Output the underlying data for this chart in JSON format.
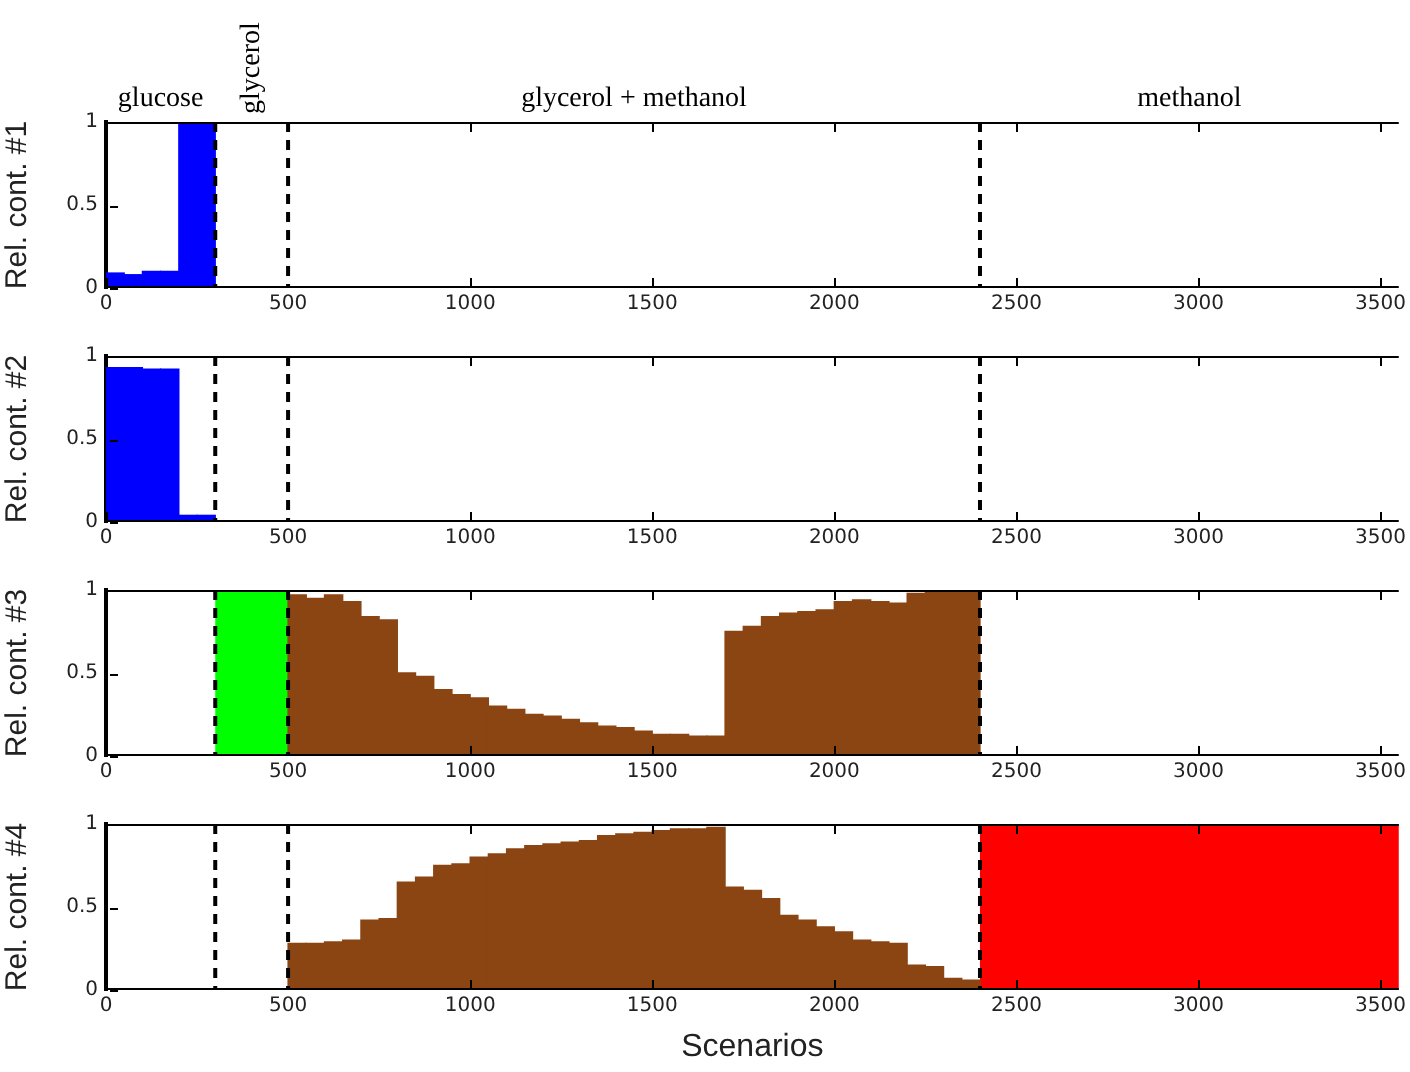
{
  "chart_data": [
    {
      "type": "bar",
      "ylabel": "Rel. cont. #1",
      "xlim": [
        0,
        3550
      ],
      "xticks": [
        0,
        500,
        1000,
        1500,
        2000,
        2500,
        3000,
        3500
      ],
      "ylim": [
        0,
        1
      ],
      "yticks": [
        0,
        0.5,
        1
      ],
      "series": [
        {
          "color": "#0000ff",
          "x": [
            25,
            75,
            125,
            175,
            225,
            275
          ],
          "values": [
            0.09,
            0.08,
            0.1,
            0.1,
            1,
            1
          ]
        }
      ],
      "ref_lines": [
        {
          "axis": "x",
          "value": 300,
          "line_style": "dashed",
          "color": "#000000"
        },
        {
          "axis": "x",
          "value": 500,
          "line_style": "dashed",
          "color": "#000000"
        },
        {
          "axis": "x",
          "value": 2400,
          "line_style": "dashed",
          "color": "#000000"
        }
      ],
      "annotations": [
        "glucose",
        "glycerol",
        "glycerol + methanol",
        "methanol"
      ]
    },
    {
      "type": "bar",
      "ylabel": "Rel. cont. #2",
      "xlim": [
        0,
        3550
      ],
      "xticks": [
        0,
        500,
        1000,
        1500,
        2000,
        2500,
        3000,
        3500
      ],
      "ylim": [
        0,
        1
      ],
      "yticks": [
        0,
        0.5,
        1
      ],
      "series": [
        {
          "color": "#0000ff",
          "x": [
            25,
            75,
            125,
            175,
            225,
            275
          ],
          "values": [
            0.93,
            0.93,
            0.92,
            0.92,
            0.04,
            0.04
          ]
        }
      ],
      "ref_lines": [
        {
          "axis": "x",
          "value": 300,
          "line_style": "dashed",
          "color": "#000000"
        },
        {
          "axis": "x",
          "value": 500,
          "line_style": "dashed",
          "color": "#000000"
        },
        {
          "axis": "x",
          "value": 2400,
          "line_style": "dashed",
          "color": "#000000"
        }
      ]
    },
    {
      "type": "bar",
      "ylabel": "Rel. cont. #3",
      "xlim": [
        0,
        3550
      ],
      "xticks": [
        0,
        500,
        1000,
        1500,
        2000,
        2500,
        3000,
        3500
      ],
      "ylim": [
        0,
        1
      ],
      "yticks": [
        0,
        0.5,
        1
      ],
      "series": [
        {
          "color": "#8b4513",
          "x": [
            525,
            575,
            625,
            675,
            725,
            775,
            825,
            875,
            925,
            975,
            1025,
            1075,
            1125,
            1175,
            1225,
            1275,
            1325,
            1375,
            1425,
            1475,
            1525,
            1575,
            1625,
            1675,
            1725,
            1775,
            1825,
            1875,
            1925,
            1975,
            2025,
            2075,
            2125,
            2175,
            2225,
            2275,
            2325,
            2375
          ],
          "values": [
            0.97,
            0.95,
            0.97,
            0.93,
            0.84,
            0.82,
            0.5,
            0.48,
            0.4,
            0.37,
            0.35,
            0.3,
            0.28,
            0.25,
            0.24,
            0.22,
            0.2,
            0.18,
            0.17,
            0.15,
            0.13,
            0.13,
            0.12,
            0.12,
            0.75,
            0.78,
            0.84,
            0.86,
            0.87,
            0.88,
            0.93,
            0.94,
            0.93,
            0.92,
            0.98,
            0.99,
            0.99,
            0.99
          ]
        }
      ],
      "bands": [
        {
          "axis": "x",
          "from": 300,
          "to": 500,
          "color": "#00ff00"
        }
      ],
      "ref_lines": [
        {
          "axis": "x",
          "value": 300,
          "line_style": "dashed",
          "color": "#000000"
        },
        {
          "axis": "x",
          "value": 500,
          "line_style": "dashed",
          "color": "#000000"
        },
        {
          "axis": "x",
          "value": 2400,
          "line_style": "dashed",
          "color": "#000000"
        }
      ]
    },
    {
      "type": "bar",
      "ylabel": "Rel. cont. #4",
      "xlabel": "Scenarios",
      "xlim": [
        0,
        3550
      ],
      "xticks": [
        0,
        500,
        1000,
        1500,
        2000,
        2500,
        3000,
        3500
      ],
      "ylim": [
        0,
        1
      ],
      "yticks": [
        0,
        0.5,
        1
      ],
      "series": [
        {
          "color": "#8b4513",
          "x": [
            525,
            575,
            625,
            675,
            725,
            775,
            825,
            875,
            925,
            975,
            1025,
            1075,
            1125,
            1175,
            1225,
            1275,
            1325,
            1375,
            1425,
            1475,
            1525,
            1575,
            1625,
            1675,
            1725,
            1775,
            1825,
            1875,
            1925,
            1975,
            2025,
            2075,
            2125,
            2175,
            2225,
            2275,
            2325,
            2375
          ],
          "values": [
            0.28,
            0.28,
            0.29,
            0.3,
            0.42,
            0.43,
            0.65,
            0.68,
            0.75,
            0.76,
            0.8,
            0.82,
            0.85,
            0.87,
            0.88,
            0.89,
            0.9,
            0.93,
            0.94,
            0.95,
            0.96,
            0.97,
            0.97,
            0.98,
            0.62,
            0.6,
            0.55,
            0.45,
            0.42,
            0.38,
            0.35,
            0.3,
            0.29,
            0.28,
            0.15,
            0.14,
            0.07,
            0.06
          ]
        }
      ],
      "bands": [
        {
          "axis": "x",
          "from": 2400,
          "to": 3550,
          "color": "#ff0000"
        }
      ],
      "ref_lines": [
        {
          "axis": "x",
          "value": 300,
          "line_style": "dashed",
          "color": "#000000"
        },
        {
          "axis": "x",
          "value": 500,
          "line_style": "dashed",
          "color": "#000000"
        },
        {
          "axis": "x",
          "value": 2400,
          "line_style": "dashed",
          "color": "#000000"
        }
      ]
    }
  ]
}
